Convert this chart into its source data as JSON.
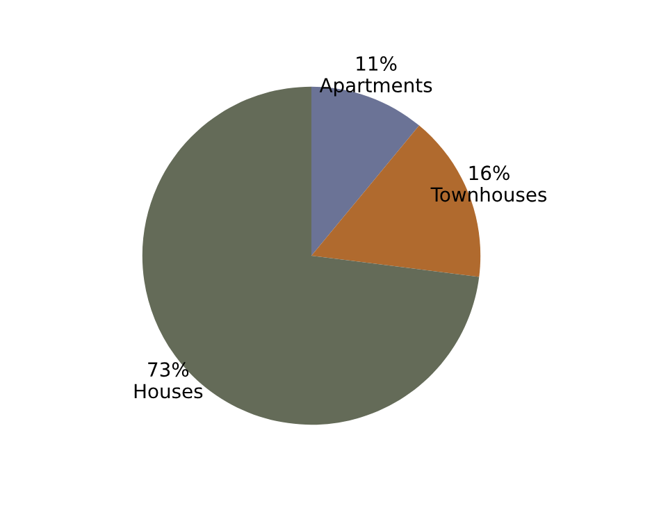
{
  "chart_data": {
    "type": "pie",
    "categories": [
      "Apartments",
      "Townhouses",
      "Houses"
    ],
    "values": [
      11,
      16,
      73
    ],
    "value_labels": [
      "11%",
      "16%",
      "73%"
    ],
    "colors": [
      "#6b7396",
      "#b06a2e",
      "#646b58"
    ]
  }
}
